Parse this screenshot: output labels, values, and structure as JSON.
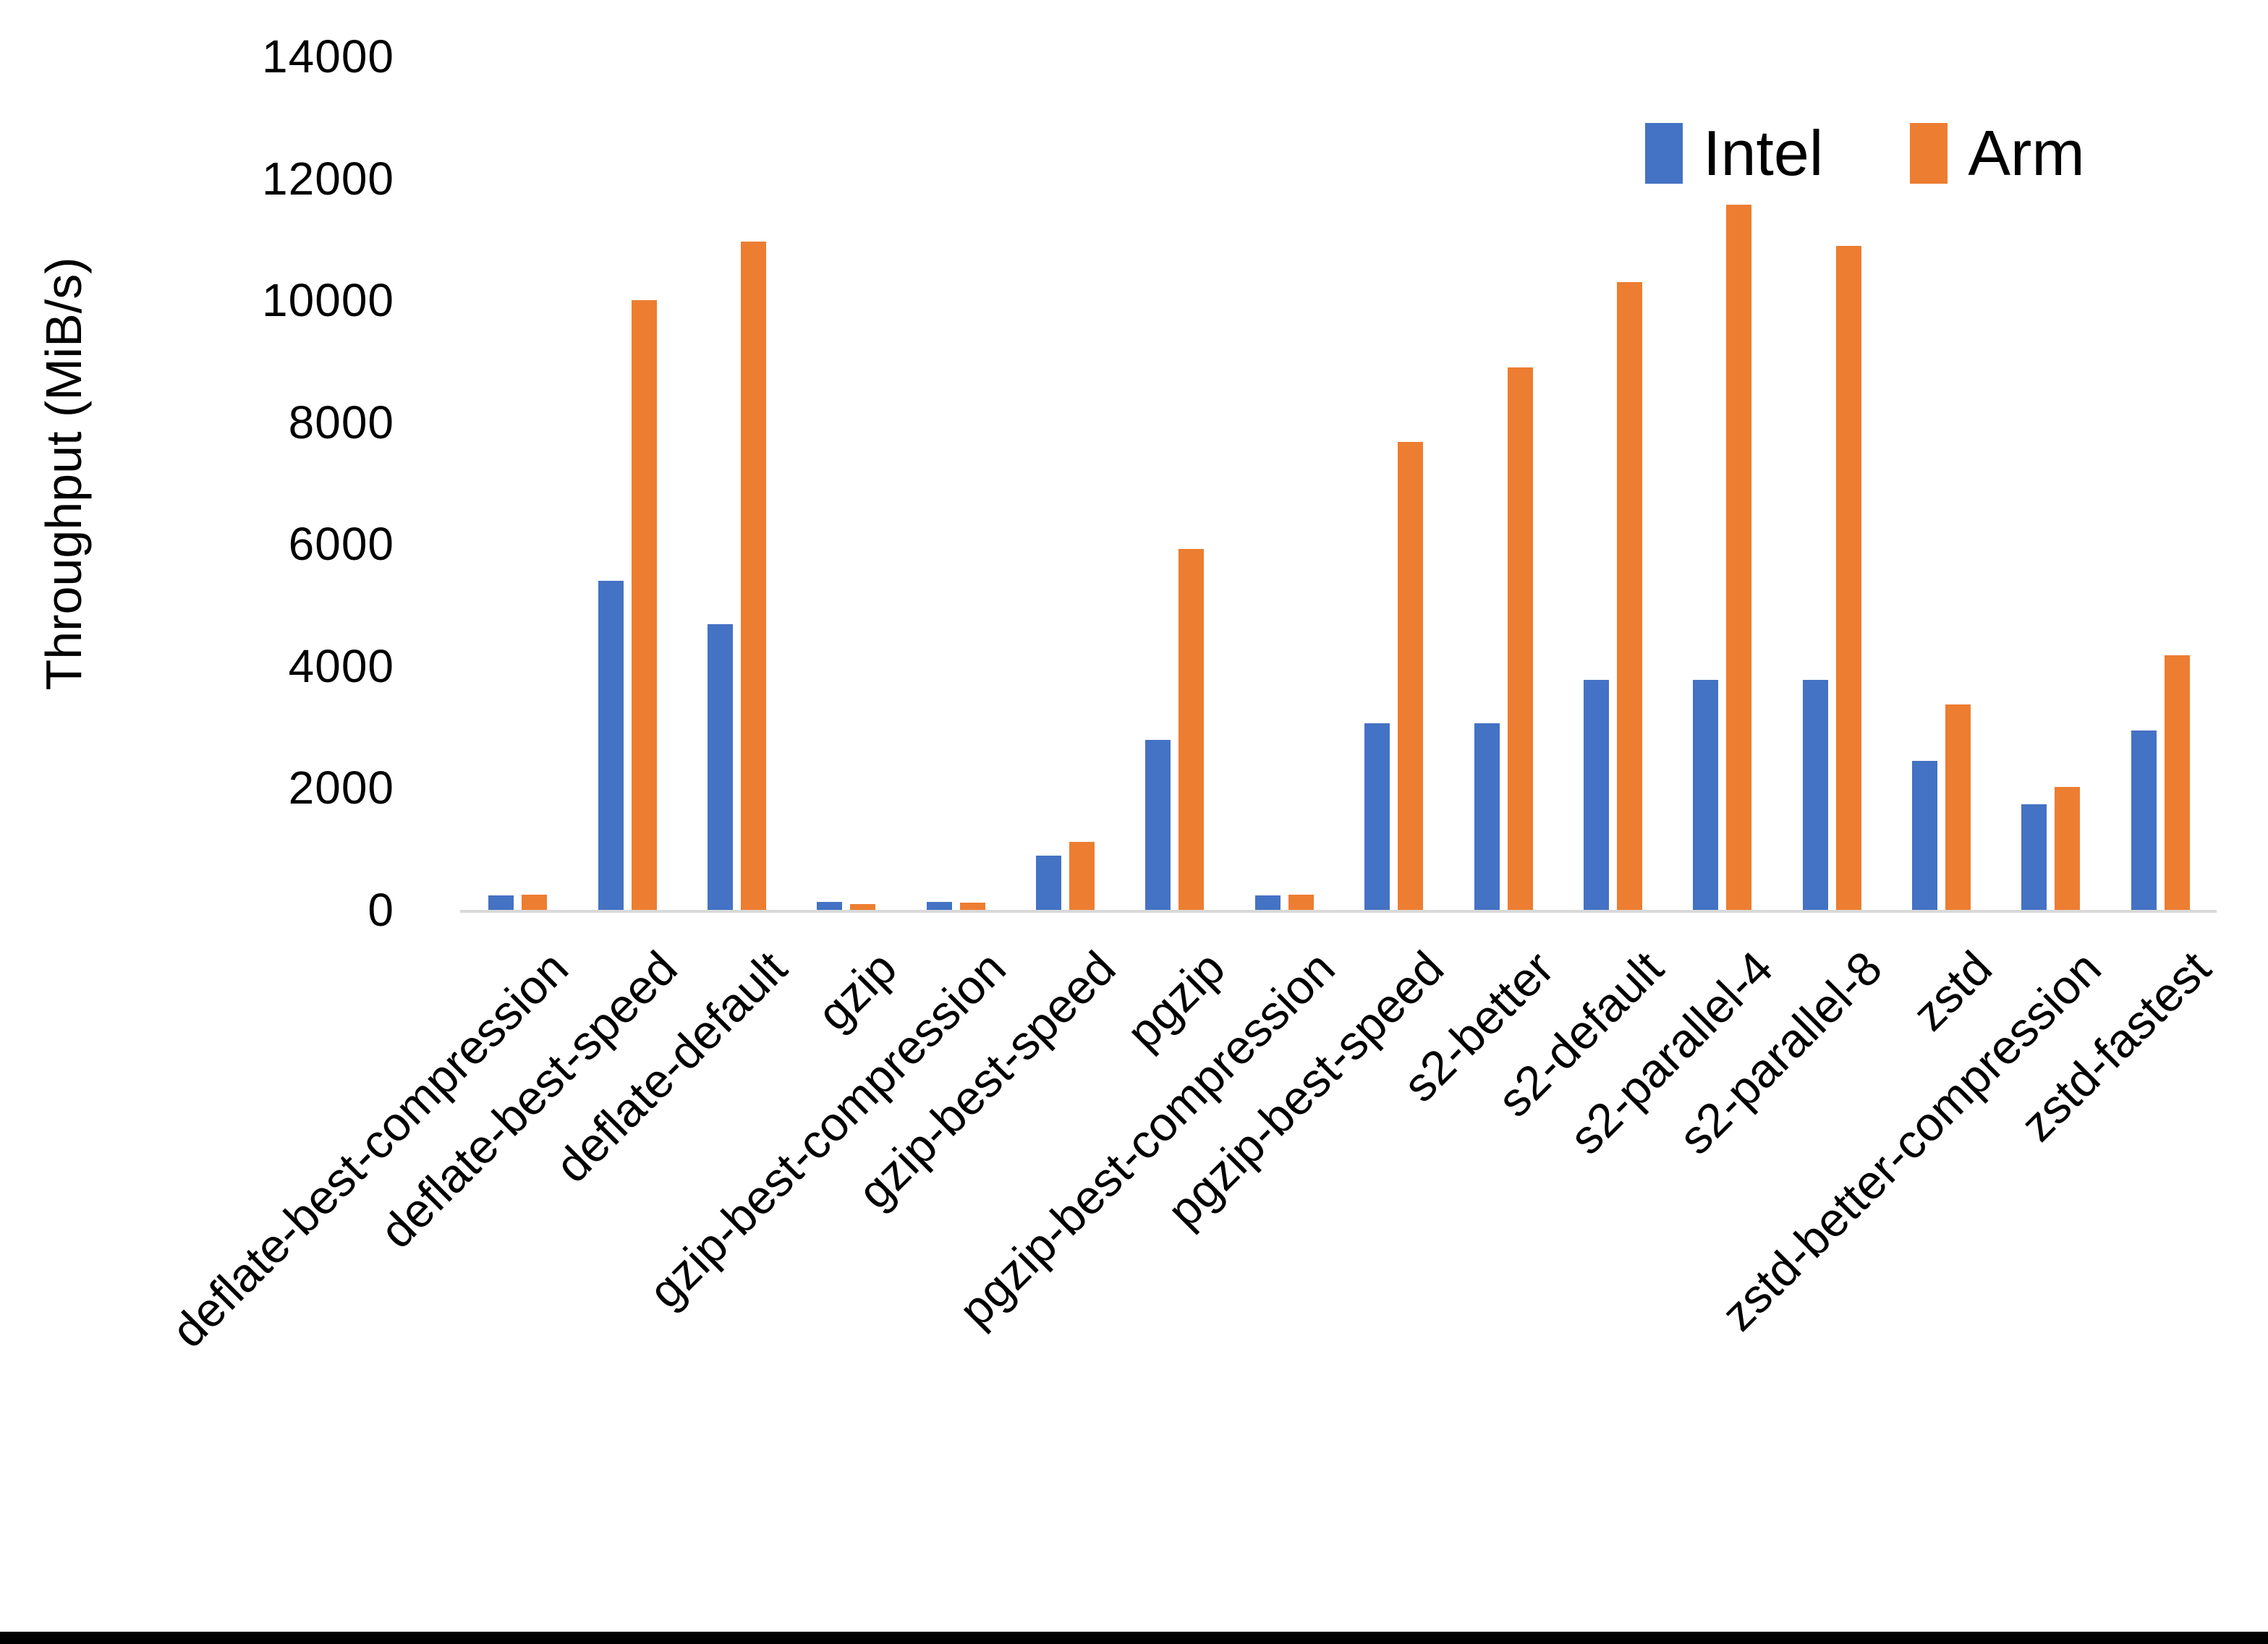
{
  "chart_data": {
    "type": "bar",
    "title": "",
    "xlabel": "",
    "ylabel": "Throughput (MiB/s)",
    "ylim": [
      0,
      14000
    ],
    "ytick_step": 2000,
    "ytick_labels": [
      "0",
      "2000",
      "4000",
      "6000",
      "8000",
      "10000",
      "12000",
      "14000"
    ],
    "grid": false,
    "legend_position": "top-right",
    "axis_line_color": "#D9D9D9",
    "categories": [
      "deflate-best-compression",
      "deflate-best-speed",
      "deflate-default",
      "gzip",
      "gzip-best-compression",
      "gzip-best-speed",
      "pgzip",
      "pgzip-best-compression",
      "pgzip-best-speed",
      "s2-better",
      "s2-default",
      "s2-parallel-4",
      "s2-parallel-8",
      "zstd",
      "zstd-better-compression",
      "zstd-fastest"
    ],
    "series": [
      {
        "name": "Intel",
        "color": "#4472C4",
        "values": [
          240,
          5400,
          4690,
          130,
          135,
          890,
          2790,
          235,
          3060,
          3060,
          3770,
          3770,
          3770,
          2440,
          1730,
          2940
        ]
      },
      {
        "name": "Arm",
        "color": "#ED7D31",
        "values": [
          245,
          10000,
          10960,
          100,
          120,
          1115,
          5920,
          250,
          7680,
          8900,
          10300,
          11570,
          10890,
          3370,
          2020,
          4180
        ]
      }
    ]
  },
  "layout_note": ""
}
